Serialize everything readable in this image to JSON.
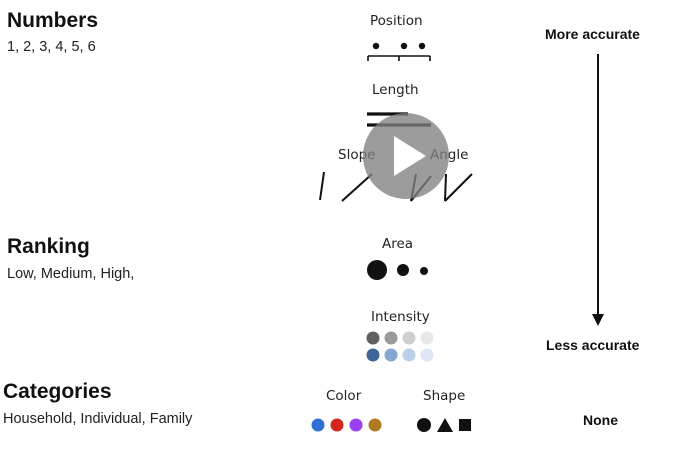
{
  "data_types": {
    "numbers": {
      "title": "Numbers",
      "example": "1, 2, 3, 4, 5, 6"
    },
    "ranking": {
      "title": "Ranking",
      "example": "Low, Medium, High,"
    },
    "categories": {
      "title": "Categories",
      "example": "Household, Individual, Family"
    }
  },
  "encodings": {
    "position": "Position",
    "length": "Length",
    "slope": "Slope",
    "angle": "Angle",
    "area": "Area",
    "intensity": "Intensity",
    "color": "Color",
    "shape": "Shape"
  },
  "accuracy_scale": {
    "top": "More accurate",
    "bottom": "Less accurate",
    "categories": "None"
  },
  "intensity_colors": {
    "gray": [
      "#5f5f5f",
      "#9a9a9a",
      "#cfcfcf",
      "#e9e9e9"
    ],
    "blue": [
      "#3f6598",
      "#86a6d2",
      "#bccfe9",
      "#dde6f4"
    ]
  },
  "category_colors": [
    "#2f6fd6",
    "#d3261f",
    "#9b3ff0",
    "#b07a1e"
  ],
  "video": {
    "play_icon": "play-icon"
  }
}
